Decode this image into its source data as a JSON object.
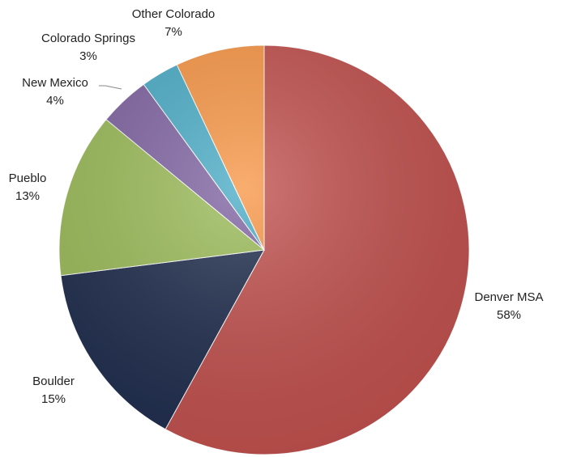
{
  "chart_data": {
    "type": "pie",
    "title": "",
    "start_angle_deg": 0,
    "direction": "clockwise",
    "slices": [
      {
        "label": "Denver MSA",
        "value": 58,
        "value_label": "58%",
        "color": "#c0504d"
      },
      {
        "label": "Boulder",
        "value": 15,
        "value_label": "15%",
        "color": "#1f2d4d"
      },
      {
        "label": "Pueblo",
        "value": 13,
        "value_label": "13%",
        "color": "#9bbb59"
      },
      {
        "label": "New Mexico",
        "value": 4,
        "value_label": "4%",
        "color": "#8064a2"
      },
      {
        "label": "Colorado Springs",
        "value": 3,
        "value_label": "3%",
        "color": "#4bacc6"
      },
      {
        "label": "Other Colorado",
        "value": 7,
        "value_label": "7%",
        "color": "#f79646"
      }
    ],
    "legend": "none"
  }
}
